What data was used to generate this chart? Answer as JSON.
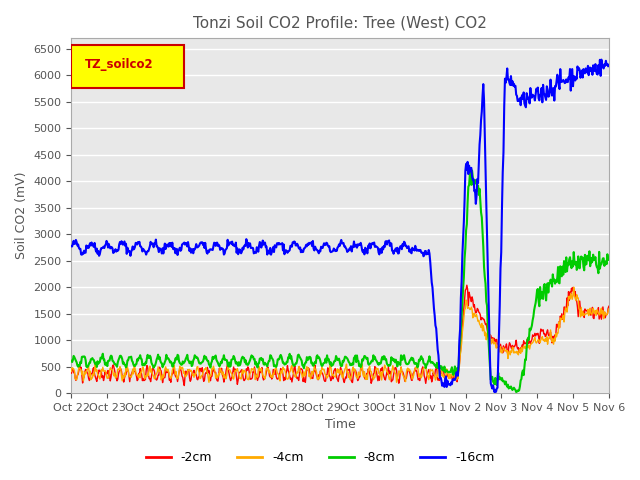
{
  "title": "Tonzi Soil CO2 Profile: Tree (West) CO2",
  "ylabel": "Soil CO2 (mV)",
  "xlabel": "Time",
  "legend_label": "TZ_soilco2",
  "series_labels": [
    "-2cm",
    "-4cm",
    "-8cm",
    "-16cm"
  ],
  "series_colors": [
    "#ff0000",
    "#ffaa00",
    "#00cc00",
    "#0000ff"
  ],
  "ylim": [
    0,
    6700
  ],
  "yticks": [
    0,
    500,
    1000,
    1500,
    2000,
    2500,
    3000,
    3500,
    4000,
    4500,
    5000,
    5500,
    6000,
    6500
  ],
  "xtick_labels": [
    "Oct 22",
    "Oct 23",
    "Oct 24",
    "Oct 25",
    "Oct 26",
    "Oct 27",
    "Oct 28",
    "Oct 29",
    "Oct 30",
    "Oct 31",
    "Nov 1",
    "Nov 2",
    "Nov 3",
    "Nov 4",
    "Nov 5",
    "Nov 6"
  ],
  "plot_bg_color": "#e8e8e8",
  "legend_box_color": "#ffff00",
  "legend_text_color": "#cc0000",
  "legend_box_edge": "#cc0000"
}
